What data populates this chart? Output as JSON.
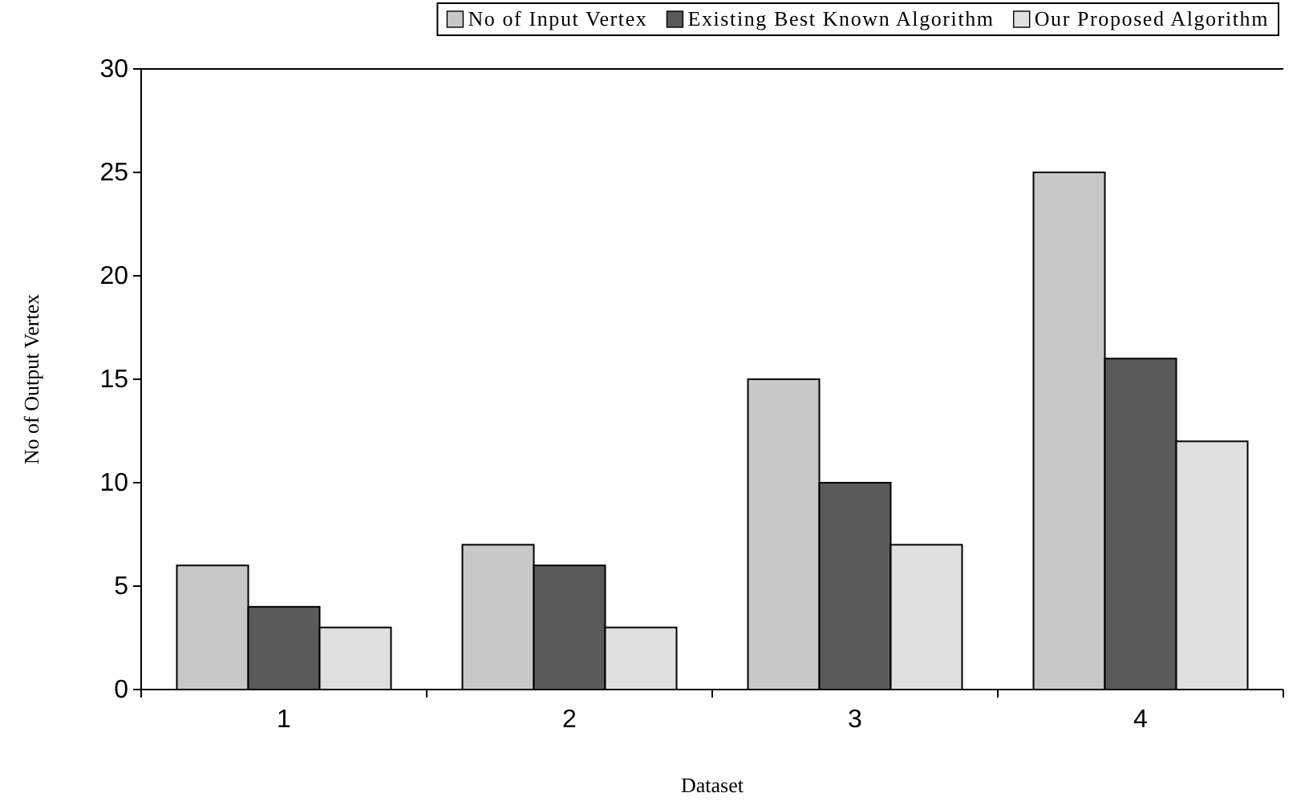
{
  "chart_data": {
    "type": "bar",
    "xlabel": "Dataset",
    "ylabel": "No of Output Vertex",
    "categories": [
      "1",
      "2",
      "3",
      "4"
    ],
    "series": [
      {
        "name": "No of Input Vertex",
        "color": "#c8c8c8",
        "values": [
          6,
          7,
          15,
          25
        ]
      },
      {
        "name": "Existing Best Known Algorithm",
        "color": "#5a5a5a",
        "values": [
          4,
          6,
          10,
          16
        ]
      },
      {
        "name": "Our Proposed Algorithm",
        "color": "#e0e0e0",
        "values": [
          3,
          3,
          7,
          12
        ]
      }
    ],
    "ylim": [
      0,
      30
    ],
    "yticks": [
      0,
      5,
      10,
      15,
      20,
      25,
      30
    ],
    "grid": false,
    "legend": "top"
  }
}
